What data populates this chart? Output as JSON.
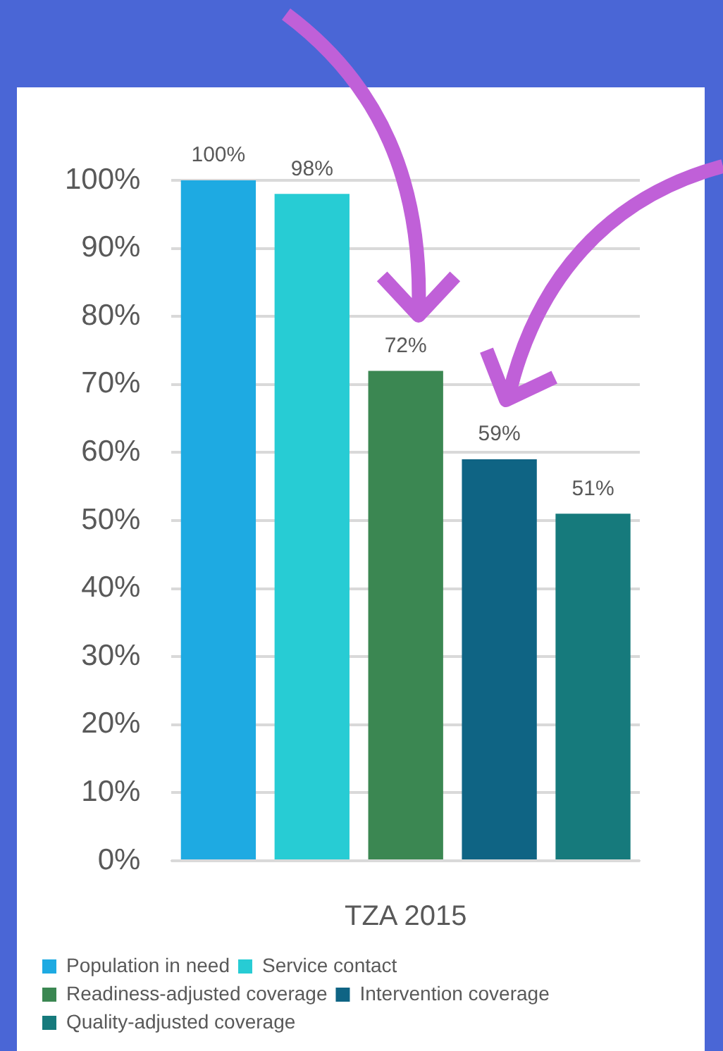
{
  "chart_data": {
    "type": "bar",
    "categories": [
      null,
      null,
      null,
      null,
      null
    ],
    "xlabel": "TZA 2015",
    "series": [
      {
        "name": "Population in need",
        "color": "#1eaae2",
        "values": [
          100,
          null,
          null,
          null,
          null
        ],
        "value_labels": [
          "100%",
          null,
          null,
          null,
          null
        ]
      },
      {
        "name": "Service contact",
        "color": "#27ccd4",
        "values": [
          null,
          98,
          null,
          null,
          null
        ],
        "value_labels": [
          null,
          "98%",
          null,
          null,
          null
        ]
      },
      {
        "name": "Readiness-adjusted coverage",
        "color": "#3b8752",
        "values": [
          null,
          null,
          72,
          null,
          null
        ],
        "value_labels": [
          null,
          null,
          "72%",
          null,
          null
        ]
      },
      {
        "name": "Intervention coverage",
        "color": "#0f6484",
        "values": [
          null,
          null,
          null,
          59,
          null
        ],
        "value_labels": [
          null,
          null,
          null,
          "59%",
          null
        ]
      },
      {
        "name": "Quality-adjusted coverage",
        "color": "#167a7c",
        "values": [
          null,
          null,
          null,
          null,
          51
        ],
        "value_labels": [
          null,
          null,
          null,
          null,
          "51%"
        ]
      }
    ],
    "ylim": [
      0,
      100
    ],
    "yticks": [
      {
        "value": 0,
        "label": "0%"
      },
      {
        "value": 10,
        "label": "10%"
      },
      {
        "value": 20,
        "label": "20%"
      },
      {
        "value": 30,
        "label": "30%"
      },
      {
        "value": 40,
        "label": "40%"
      },
      {
        "value": 50,
        "label": "50%"
      },
      {
        "value": 60,
        "label": "60%"
      },
      {
        "value": 70,
        "label": "70%"
      },
      {
        "value": 80,
        "label": "80%"
      },
      {
        "value": 90,
        "label": "90%"
      },
      {
        "value": 100,
        "label": "100%"
      }
    ],
    "grid": "y",
    "legend": "bottom"
  }
}
